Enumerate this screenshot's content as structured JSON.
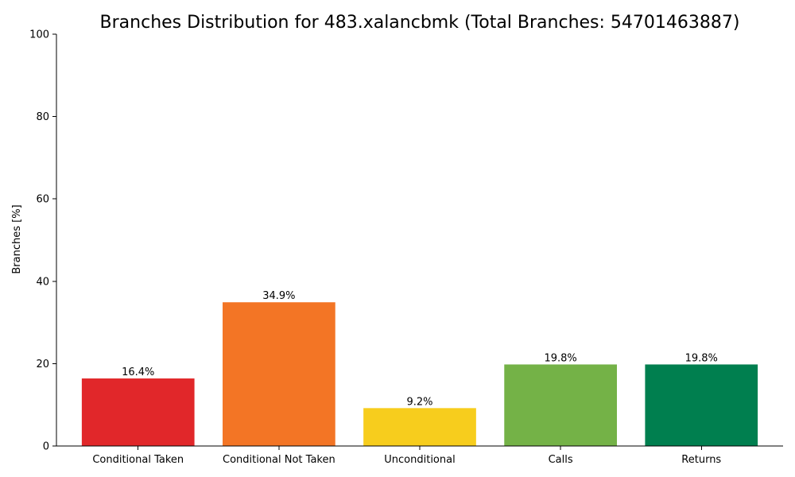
{
  "chart_data": {
    "type": "bar",
    "title": "Branches Distribution for 483.xalancbmk (Total Branches: 54701463887)",
    "xlabel": "",
    "ylabel": "Branches [%]",
    "ylim": [
      0,
      100
    ],
    "yticks": [
      0,
      20,
      40,
      60,
      80,
      100
    ],
    "categories": [
      "Conditional Taken",
      "Conditional Not Taken",
      "Unconditional",
      "Calls",
      "Returns"
    ],
    "values": [
      16.4,
      34.9,
      9.2,
      19.8,
      19.8
    ],
    "value_labels": [
      "16.4%",
      "34.9%",
      "9.2%",
      "19.8%",
      "19.8%"
    ],
    "colors": [
      "#e1272a",
      "#f37525",
      "#f7cd1d",
      "#74b247",
      "#007f4f"
    ],
    "grid": false,
    "legend": "none"
  }
}
